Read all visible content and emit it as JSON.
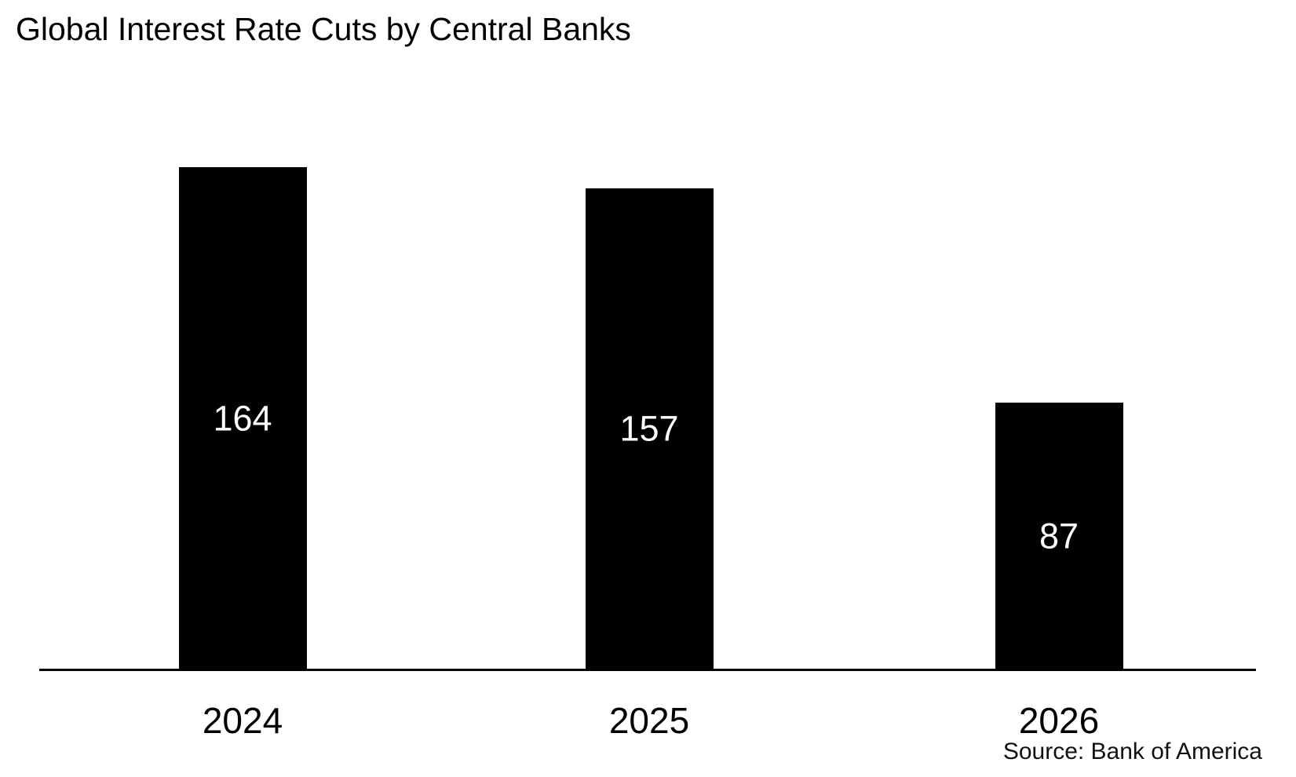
{
  "chart": {
    "title": "Global Interest Rate Cuts by Central Banks",
    "source": "Source: Bank of America"
  },
  "chart_data": {
    "type": "bar",
    "title": "Global Interest Rate Cuts by Central Banks",
    "categories": [
      "2024",
      "2025",
      "2026"
    ],
    "values": [
      164,
      157,
      87
    ],
    "value_labels_position": "inside-center",
    "xlabel": "",
    "ylabel": "",
    "y_axis_visible": false,
    "grid": false,
    "legend": false,
    "bar_color": "#000000",
    "value_label_color": "#ffffff",
    "axis_line_color": "#000000",
    "background_color": "#ffffff",
    "source": "Source: Bank of America"
  }
}
